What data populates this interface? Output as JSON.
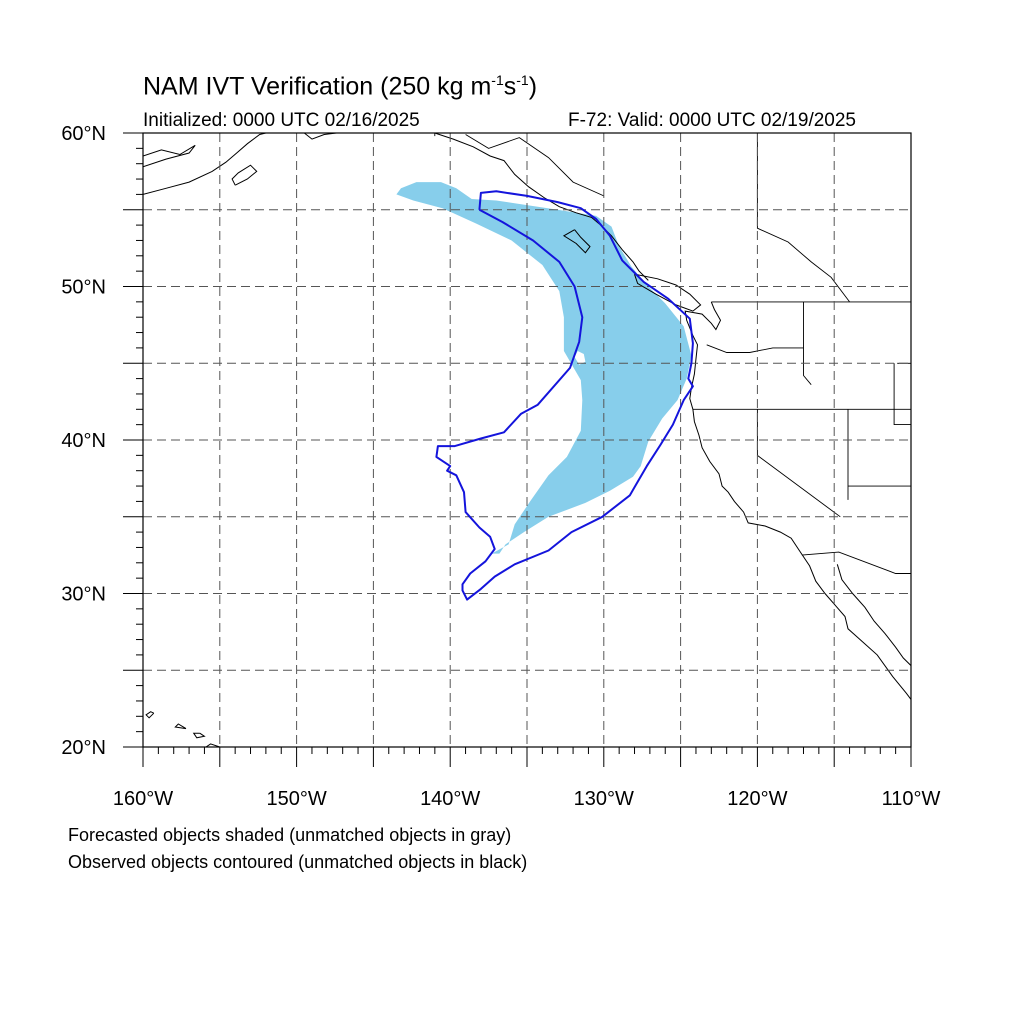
{
  "title": {
    "main": "NAM IVT Verification (250 kg m",
    "sup1": "-1",
    "mid": "s",
    "sup2": "-1",
    "end": ")"
  },
  "initialized": "Initialized: 0000 UTC 02/16/2025",
  "valid": "F-72: Valid: 0000 UTC 02/19/2025",
  "footer": {
    "line1": "Forecasted objects shaded (unmatched objects in gray)",
    "line2": "Observed objects contoured (unmatched objects in black)"
  },
  "map": {
    "lon_range": [
      -160,
      -110
    ],
    "lat_range": [
      20,
      60
    ],
    "lat_labels": [
      {
        "lat": 60,
        "text": "60°N"
      },
      {
        "lat": 50,
        "text": "50°N"
      },
      {
        "lat": 40,
        "text": "40°N"
      },
      {
        "lat": 30,
        "text": "30°N"
      },
      {
        "lat": 20,
        "text": "20°N"
      }
    ],
    "lon_labels": [
      {
        "lon": -160,
        "text": "160°W"
      },
      {
        "lon": -150,
        "text": "150°W"
      },
      {
        "lon": -140,
        "text": "140°W"
      },
      {
        "lon": -130,
        "text": "130°W"
      },
      {
        "lon": -120,
        "text": "120°W"
      },
      {
        "lon": -110,
        "text": "110°W"
      }
    ],
    "colors": {
      "forecast_fill": "#87CEEB",
      "observed_contour": "#1414DC",
      "coastline": "#000000",
      "grid": "#555555"
    },
    "forecast_object": [
      [
        -143.5,
        56.0
      ],
      [
        -143.2,
        56.4
      ],
      [
        -142.2,
        56.8
      ],
      [
        -140.6,
        56.8
      ],
      [
        -139.6,
        56.4
      ],
      [
        -138.6,
        55.7
      ],
      [
        -137.0,
        55.6
      ],
      [
        -135.0,
        55.3
      ],
      [
        -133.0,
        55.0
      ],
      [
        -130.5,
        54.6
      ],
      [
        -129.5,
        53.9
      ],
      [
        -129.0,
        52.6
      ],
      [
        -128.2,
        51.3
      ],
      [
        -127.2,
        50.1
      ],
      [
        -126.0,
        48.9
      ],
      [
        -124.8,
        47.4
      ],
      [
        -124.3,
        45.5
      ],
      [
        -124.6,
        44.0
      ],
      [
        -125.2,
        42.6
      ],
      [
        -126.2,
        41.4
      ],
      [
        -127.1,
        39.9
      ],
      [
        -127.6,
        38.3
      ],
      [
        -128.1,
        37.6
      ],
      [
        -129.6,
        36.7
      ],
      [
        -131.2,
        35.9
      ],
      [
        -133.6,
        35.0
      ],
      [
        -135.2,
        34.0
      ],
      [
        -136.4,
        33.2
      ],
      [
        -136.8,
        32.6
      ],
      [
        -137.3,
        32.6
      ],
      [
        -136.2,
        33.2
      ],
      [
        -135.8,
        34.5
      ],
      [
        -134.8,
        36.0
      ],
      [
        -133.6,
        37.7
      ],
      [
        -132.4,
        38.9
      ],
      [
        -131.5,
        40.6
      ],
      [
        -131.4,
        42.6
      ],
      [
        -131.5,
        43.9
      ],
      [
        -132.6,
        45.8
      ],
      [
        -132.6,
        48.0
      ],
      [
        -132.9,
        49.7
      ],
      [
        -134.0,
        51.4
      ],
      [
        -136.0,
        53.0
      ],
      [
        -138.3,
        54.1
      ],
      [
        -140.5,
        55.1
      ],
      [
        -142.4,
        55.6
      ],
      [
        -143.5,
        56.0
      ]
    ],
    "forecast_hole": [
      [
        -131.7,
        45.8
      ],
      [
        -131.3,
        45.6
      ],
      [
        -131.2,
        45.1
      ],
      [
        -131.6,
        44.9
      ],
      [
        -131.9,
        45.4
      ],
      [
        -131.7,
        45.8
      ]
    ],
    "observed_contour": [
      [
        -138.1,
        55.0
      ],
      [
        -138.0,
        56.1
      ],
      [
        -137.0,
        56.2
      ],
      [
        -135.0,
        55.9
      ],
      [
        -133.0,
        55.5
      ],
      [
        -131.5,
        55.1
      ],
      [
        -130.5,
        54.4
      ],
      [
        -129.6,
        53.3
      ],
      [
        -128.8,
        51.7
      ],
      [
        -127.4,
        50.3
      ],
      [
        -125.8,
        49.2
      ],
      [
        -124.4,
        47.9
      ],
      [
        -124.2,
        46.3
      ],
      [
        -124.3,
        45.0
      ],
      [
        -124.5,
        44.0
      ],
      [
        -124.2,
        43.5
      ],
      [
        -124.8,
        42.6
      ],
      [
        -125.5,
        41.0
      ],
      [
        -126.3,
        39.7
      ],
      [
        -127.2,
        38.3
      ],
      [
        -127.9,
        37.1
      ],
      [
        -128.3,
        36.4
      ],
      [
        -130.1,
        35.0
      ],
      [
        -132.1,
        34.0
      ],
      [
        -133.6,
        32.8
      ],
      [
        -135.8,
        31.9
      ],
      [
        -137.1,
        31.1
      ],
      [
        -138.0,
        30.3
      ],
      [
        -138.9,
        29.6
      ],
      [
        -139.2,
        30.2
      ],
      [
        -139.2,
        30.6
      ],
      [
        -138.7,
        31.3
      ],
      [
        -137.7,
        32.1
      ],
      [
        -137.1,
        32.9
      ],
      [
        -137.4,
        33.7
      ],
      [
        -138.1,
        34.3
      ],
      [
        -139.0,
        35.3
      ],
      [
        -139.1,
        36.6
      ],
      [
        -139.6,
        37.7
      ],
      [
        -140.2,
        38.0
      ],
      [
        -140.0,
        38.3
      ],
      [
        -140.9,
        38.9
      ],
      [
        -140.8,
        39.6
      ],
      [
        -139.7,
        39.6
      ],
      [
        -138.0,
        40.1
      ],
      [
        -136.5,
        40.5
      ],
      [
        -135.4,
        41.7
      ],
      [
        -134.3,
        42.3
      ],
      [
        -132.2,
        44.7
      ],
      [
        -131.6,
        46.4
      ],
      [
        -131.4,
        48.0
      ],
      [
        -131.9,
        50.0
      ],
      [
        -132.9,
        51.6
      ],
      [
        -134.6,
        53.0
      ],
      [
        -136.6,
        54.2
      ],
      [
        -138.1,
        55.0
      ]
    ],
    "coastlines": [
      [
        [
          -160,
          57.8
        ],
        [
          -158.5,
          58.3
        ],
        [
          -157.0,
          58.7
        ],
        [
          -156.6,
          59.2
        ],
        [
          -157.6,
          58.6
        ],
        [
          -158.8,
          58.9
        ],
        [
          -160,
          58.5
        ]
      ],
      [
        [
          -160,
          56.0
        ],
        [
          -158.5,
          56.4
        ],
        [
          -157.0,
          56.8
        ],
        [
          -155.5,
          57.5
        ],
        [
          -154.6,
          58.1
        ],
        [
          -153.9,
          58.7
        ],
        [
          -153.2,
          59.3
        ],
        [
          -152.4,
          59.9
        ],
        [
          -152.0,
          60
        ]
      ],
      [
        [
          -154.0,
          56.6
        ],
        [
          -153.2,
          57.0
        ],
        [
          -152.6,
          57.5
        ],
        [
          -153.0,
          57.9
        ],
        [
          -153.8,
          57.4
        ],
        [
          -154.2,
          57.0
        ],
        [
          -154.0,
          56.6
        ]
      ],
      [
        [
          -149.5,
          60
        ],
        [
          -149.0,
          59.6
        ],
        [
          -148.2,
          59.9
        ],
        [
          -147.4,
          60
        ]
      ],
      [
        [
          -141.0,
          60
        ],
        [
          -139.8,
          59.6
        ],
        [
          -138.5,
          59.1
        ],
        [
          -137.4,
          58.5
        ],
        [
          -136.5,
          58.2
        ],
        [
          -135.8,
          57.3
        ],
        [
          -134.9,
          56.5
        ],
        [
          -133.9,
          55.8
        ],
        [
          -132.9,
          55.2
        ],
        [
          -131.8,
          54.8
        ],
        [
          -130.8,
          54.5
        ],
        [
          -130.2,
          54.0
        ],
        [
          -129.5,
          53.3
        ],
        [
          -128.8,
          52.4
        ],
        [
          -128.1,
          51.6
        ],
        [
          -127.7,
          51.0
        ],
        [
          -127.1,
          50.4
        ]
      ],
      [
        [
          -131.9,
          53.7
        ],
        [
          -132.6,
          53.3
        ],
        [
          -131.8,
          52.8
        ],
        [
          -131.2,
          52.2
        ],
        [
          -130.9,
          52.6
        ],
        [
          -131.5,
          53.2
        ],
        [
          -131.9,
          53.7
        ]
      ],
      [
        [
          -128.0,
          50.8
        ],
        [
          -126.5,
          50.5
        ],
        [
          -125.3,
          50.1
        ],
        [
          -124.4,
          49.5
        ],
        [
          -123.7,
          48.8
        ],
        [
          -124.2,
          48.4
        ],
        [
          -125.3,
          48.8
        ],
        [
          -126.6,
          49.5
        ],
        [
          -127.8,
          50.2
        ],
        [
          -128.0,
          50.8
        ]
      ],
      [
        [
          -123.0,
          49.0
        ],
        [
          -122.8,
          48.5
        ],
        [
          -122.4,
          47.8
        ],
        [
          -122.7,
          47.2
        ],
        [
          -123.0,
          47.6
        ],
        [
          -123.6,
          48.2
        ],
        [
          -124.7,
          48.4
        ],
        [
          -124.6,
          47.8
        ],
        [
          -124.2,
          46.8
        ],
        [
          -123.9,
          46.2
        ],
        [
          -124.0,
          45.3
        ],
        [
          -124.1,
          44.3
        ],
        [
          -124.3,
          43.4
        ],
        [
          -124.4,
          42.7
        ],
        [
          -124.2,
          42.0
        ],
        [
          -124.1,
          41.2
        ],
        [
          -123.8,
          40.3
        ],
        [
          -123.6,
          39.5
        ],
        [
          -123.1,
          38.6
        ],
        [
          -122.5,
          37.8
        ],
        [
          -122.3,
          37.0
        ],
        [
          -121.9,
          36.6
        ],
        [
          -121.5,
          36.0
        ],
        [
          -120.9,
          35.3
        ],
        [
          -120.6,
          34.6
        ],
        [
          -119.5,
          34.4
        ],
        [
          -118.5,
          34.0
        ],
        [
          -117.8,
          33.6
        ],
        [
          -117.2,
          32.7
        ],
        [
          -116.6,
          31.8
        ],
        [
          -116.2,
          30.8
        ],
        [
          -115.6,
          30.0
        ],
        [
          -114.9,
          29.2
        ],
        [
          -114.3,
          28.5
        ],
        [
          -114.1,
          27.7
        ],
        [
          -113.2,
          26.9
        ],
        [
          -112.2,
          26.0
        ],
        [
          -111.2,
          24.6
        ],
        [
          -110.3,
          23.5
        ],
        [
          -110,
          23.1
        ]
      ],
      [
        [
          -114.8,
          31.9
        ],
        [
          -114.5,
          30.9
        ],
        [
          -113.8,
          30.0
        ],
        [
          -113.0,
          29.1
        ],
        [
          -112.4,
          28.2
        ],
        [
          -111.7,
          27.4
        ],
        [
          -111.0,
          26.5
        ],
        [
          -110.5,
          25.8
        ],
        [
          -110,
          25.3
        ]
      ],
      [
        [
          -155.0,
          20
        ],
        [
          -155.6,
          20.2
        ],
        [
          -155.9,
          20.0
        ]
      ],
      [
        [
          -156.3,
          20.9
        ],
        [
          -156.0,
          20.7
        ],
        [
          -156.5,
          20.6
        ],
        [
          -156.7,
          20.9
        ],
        [
          -156.3,
          20.9
        ]
      ],
      [
        [
          -157.2,
          21.2
        ],
        [
          -157.9,
          21.3
        ],
        [
          -157.7,
          21.5
        ],
        [
          -157.2,
          21.2
        ]
      ],
      [
        [
          -159.3,
          22.2
        ],
        [
          -159.6,
          21.9
        ],
        [
          -159.8,
          22.1
        ],
        [
          -159.5,
          22.3
        ],
        [
          -159.3,
          22.2
        ]
      ]
    ],
    "borders": [
      [
        [
          -123.0,
          49.0
        ],
        [
          -110,
          49.0
        ]
      ],
      [
        [
          -123.3,
          46.2
        ],
        [
          -122.0,
          45.7
        ],
        [
          -120.5,
          45.7
        ],
        [
          -119.0,
          46.0
        ],
        [
          -117.0,
          46.0
        ]
      ],
      [
        [
          -117.0,
          49.0
        ],
        [
          -117.0,
          44.2
        ],
        [
          -116.5,
          43.6
        ]
      ],
      [
        [
          -124.2,
          42.0
        ],
        [
          -110,
          42.0
        ]
      ],
      [
        [
          -120.0,
          42.0
        ],
        [
          -120.0,
          39.0
        ],
        [
          -114.6,
          35.0
        ]
      ],
      [
        [
          -114.1,
          42.0
        ],
        [
          -114.1,
          36.1
        ]
      ],
      [
        [
          -114.1,
          37.0
        ],
        [
          -110,
          37.0
        ]
      ],
      [
        [
          -117.1,
          32.5
        ],
        [
          -114.7,
          32.7
        ],
        [
          -111.0,
          31.3
        ],
        [
          -110,
          31.3
        ]
      ],
      [
        [
          -110.9,
          45.0
        ],
        [
          -110,
          45.0
        ]
      ],
      [
        [
          -111.1,
          45.0
        ],
        [
          -111.1,
          41.0
        ],
        [
          -110,
          41.0
        ]
      ],
      [
        [
          -120.0,
          60
        ],
        [
          -120.0,
          53.8
        ],
        [
          -118.0,
          52.9
        ],
        [
          -116.5,
          51.6
        ],
        [
          -115.2,
          50.6
        ],
        [
          -114.0,
          49.0
        ]
      ],
      [
        [
          -141.0,
          60
        ],
        [
          -141.0,
          59.8
        ]
      ],
      [
        [
          -139.0,
          59.9
        ],
        [
          -137.5,
          59.0
        ],
        [
          -135.5,
          59.7
        ],
        [
          -133.6,
          58.4
        ],
        [
          -132.0,
          56.8
        ],
        [
          -130.0,
          55.9
        ]
      ]
    ]
  }
}
